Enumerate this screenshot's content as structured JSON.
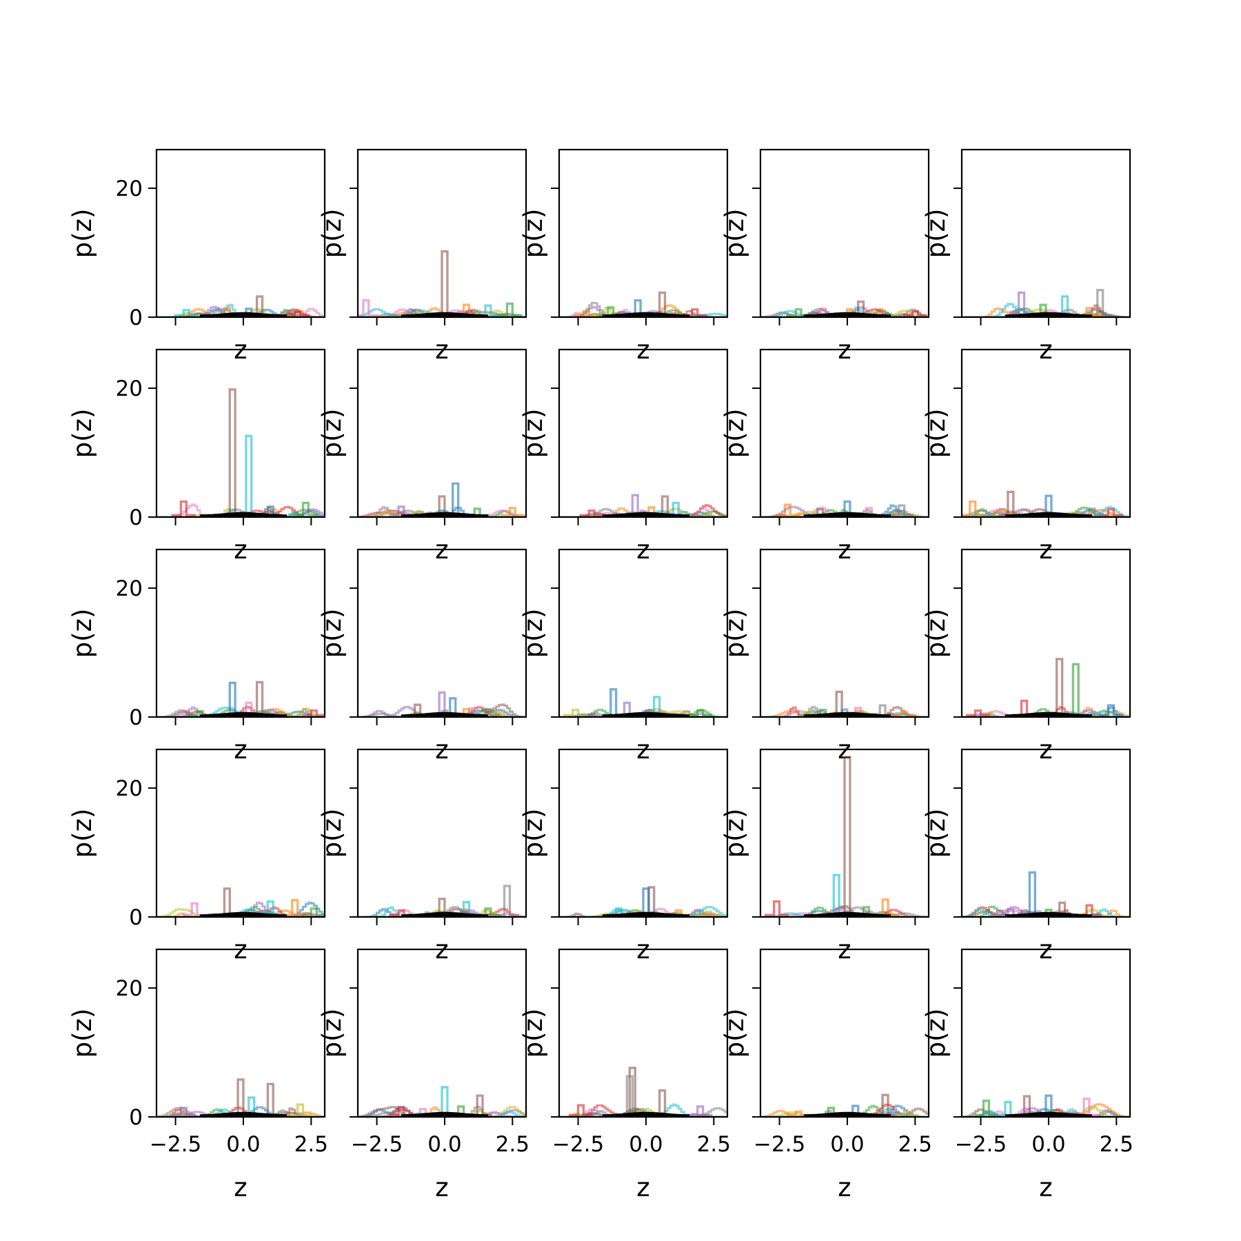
{
  "chart_data": {
    "type": "line",
    "layout": "grid",
    "rows": 5,
    "cols": 5,
    "xlabel": "z",
    "ylabel": "p(z)",
    "xlim": [
      -3.2,
      3.0
    ],
    "ylim": [
      0,
      26
    ],
    "xticks": [
      -2.5,
      0.0,
      2.5
    ],
    "xtick_labels": [
      "−2.5",
      "0.0",
      "2.5"
    ],
    "yticks": [
      0,
      20
    ],
    "ytick_labels": [
      "0",
      "20"
    ],
    "grid": false,
    "legend": "none",
    "sharey": true,
    "palette": [
      "#1f77b4",
      "#ff7f0e",
      "#2ca02c",
      "#d62728",
      "#9467bd",
      "#8c564b",
      "#e377c2",
      "#7f7f7f",
      "#bcbd22",
      "#17becf"
    ],
    "reference_curve": {
      "color": "#000000",
      "description_values": {
        "peak": 0.4
      }
    },
    "peaks": [
      [
        [
          0.6,
          3.2,
          5
        ],
        [
          -2.1,
          1.1,
          9
        ],
        [
          2.0,
          0.8,
          3
        ],
        [
          -0.6,
          1.4,
          1
        ],
        [
          0.2,
          1.3,
          0
        ]
      ],
      [
        [
          0.0,
          10.2,
          5
        ],
        [
          2.4,
          2.1,
          2
        ],
        [
          -2.9,
          2.6,
          6
        ],
        [
          0.8,
          1.9,
          1
        ],
        [
          1.6,
          1.8,
          9
        ]
      ],
      [
        [
          0.6,
          3.8,
          5
        ],
        [
          -0.3,
          2.6,
          0
        ],
        [
          1.8,
          1.2,
          3
        ],
        [
          -1.3,
          1.5,
          2
        ],
        [
          -2.2,
          0.9,
          1
        ]
      ],
      [
        [
          0.5,
          2.4,
          5
        ],
        [
          2.5,
          0.9,
          3
        ],
        [
          -1.8,
          1.2,
          2
        ],
        [
          -0.9,
          1.3,
          6
        ],
        [
          0.1,
          1.2,
          1
        ]
      ],
      [
        [
          -1.0,
          3.8,
          4
        ],
        [
          1.9,
          4.2,
          7
        ],
        [
          0.6,
          3.2,
          9
        ],
        [
          -0.2,
          1.9,
          2
        ],
        [
          1.5,
          1.4,
          1
        ]
      ],
      [
        [
          -0.4,
          19.8,
          5
        ],
        [
          0.2,
          12.6,
          9
        ],
        [
          -2.2,
          2.4,
          3
        ],
        [
          2.3,
          2.2,
          2
        ],
        [
          1.0,
          1.6,
          0
        ]
      ],
      [
        [
          0.4,
          5.2,
          0
        ],
        [
          -0.1,
          3.2,
          5
        ],
        [
          2.5,
          1.4,
          1
        ],
        [
          -1.6,
          1.6,
          4
        ],
        [
          1.2,
          1.3,
          2
        ]
      ],
      [
        [
          -0.4,
          3.4,
          4
        ],
        [
          0.7,
          3.2,
          5
        ],
        [
          1.1,
          2.2,
          9
        ],
        [
          -2.0,
          1.0,
          3
        ],
        [
          0.2,
          1.5,
          1
        ]
      ],
      [
        [
          0.0,
          2.4,
          0
        ],
        [
          2.0,
          1.8,
          7
        ],
        [
          -2.2,
          1.9,
          1
        ],
        [
          -1.0,
          1.2,
          5
        ],
        [
          0.8,
          1.4,
          6
        ]
      ],
      [
        [
          -1.4,
          3.9,
          5
        ],
        [
          0.0,
          3.3,
          0
        ],
        [
          -2.8,
          2.4,
          1
        ],
        [
          2.3,
          1.2,
          3
        ],
        [
          1.6,
          1.3,
          7
        ]
      ],
      [
        [
          -0.4,
          5.3,
          0
        ],
        [
          0.6,
          5.4,
          5
        ],
        [
          0.2,
          2.2,
          6
        ],
        [
          2.6,
          1.0,
          3
        ],
        [
          -1.6,
          0.9,
          2
        ]
      ],
      [
        [
          -0.1,
          3.8,
          4
        ],
        [
          0.3,
          2.9,
          0
        ],
        [
          -1.0,
          1.9,
          5
        ],
        [
          1.6,
          1.1,
          7
        ],
        [
          0.8,
          1.2,
          1
        ]
      ],
      [
        [
          -1.2,
          4.3,
          0
        ],
        [
          0.4,
          3.1,
          9
        ],
        [
          -0.7,
          2.2,
          4
        ],
        [
          2.0,
          1.0,
          2
        ],
        [
          -2.6,
          1.1,
          8
        ]
      ],
      [
        [
          -0.3,
          3.9,
          5
        ],
        [
          1.3,
          1.8,
          7
        ],
        [
          0.4,
          1.4,
          6
        ],
        [
          -0.9,
          1.1,
          2
        ],
        [
          2.1,
          0.8,
          1
        ]
      ],
      [
        [
          0.4,
          9.0,
          5
        ],
        [
          1.0,
          8.2,
          2
        ],
        [
          -0.9,
          2.5,
          3
        ],
        [
          2.3,
          1.8,
          0
        ],
        [
          -2.6,
          1.0,
          3
        ]
      ],
      [
        [
          -0.6,
          4.4,
          5
        ],
        [
          1.0,
          2.4,
          9
        ],
        [
          1.9,
          2.6,
          1
        ],
        [
          -1.8,
          2.1,
          6
        ],
        [
          2.6,
          1.3,
          2
        ]
      ],
      [
        [
          2.3,
          4.8,
          7
        ],
        [
          -0.1,
          2.8,
          5
        ],
        [
          0.8,
          2.3,
          9
        ],
        [
          -1.6,
          1.0,
          3
        ],
        [
          1.6,
          1.3,
          2
        ]
      ],
      [
        [
          0.2,
          4.6,
          5
        ],
        [
          0.0,
          4.4,
          0
        ],
        [
          -1.0,
          1.3,
          9
        ],
        [
          1.2,
          1.0,
          1
        ],
        [
          2.3,
          0.8,
          8
        ]
      ],
      [
        [
          0.0,
          24.8,
          5
        ],
        [
          -0.4,
          6.5,
          9
        ],
        [
          1.4,
          2.7,
          1
        ],
        [
          -2.6,
          2.4,
          3
        ],
        [
          0.7,
          1.5,
          2
        ]
      ],
      [
        [
          -0.6,
          6.9,
          0
        ],
        [
          0.5,
          2.2,
          5
        ],
        [
          1.5,
          1.8,
          3
        ],
        [
          -1.4,
          1.2,
          4
        ],
        [
          0.0,
          1.1,
          2
        ]
      ],
      [
        [
          -0.1,
          5.8,
          5
        ],
        [
          1.0,
          5.1,
          5
        ],
        [
          2.1,
          1.9,
          8
        ],
        [
          -2.2,
          1.4,
          4
        ],
        [
          0.3,
          3.0,
          9
        ]
      ],
      [
        [
          0.0,
          4.6,
          9
        ],
        [
          1.3,
          3.3,
          5
        ],
        [
          -1.6,
          1.5,
          3
        ],
        [
          0.6,
          1.6,
          2
        ],
        [
          -0.8,
          1.2,
          6
        ]
      ],
      [
        [
          -0.5,
          7.6,
          5
        ],
        [
          -0.6,
          6.3,
          7
        ],
        [
          0.6,
          4.1,
          5
        ],
        [
          -2.4,
          1.8,
          3
        ],
        [
          2.0,
          1.6,
          4
        ]
      ],
      [
        [
          1.4,
          3.4,
          5
        ],
        [
          0.3,
          1.7,
          0
        ],
        [
          -0.6,
          1.4,
          2
        ],
        [
          2.2,
          0.8,
          8
        ],
        [
          -1.8,
          0.8,
          1
        ]
      ],
      [
        [
          -0.8,
          3.2,
          5
        ],
        [
          0.0,
          3.3,
          0
        ],
        [
          1.4,
          2.8,
          6
        ],
        [
          -2.3,
          2.5,
          2
        ],
        [
          -1.5,
          2.3,
          9
        ]
      ]
    ]
  }
}
